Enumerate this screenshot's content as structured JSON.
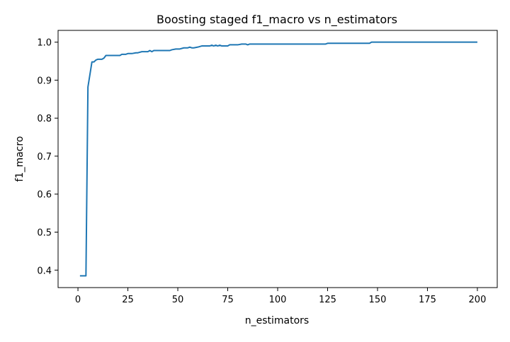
{
  "chart_data": {
    "type": "line",
    "title": "Boosting staged f1_macro vs n_estimators",
    "xlabel": "n_estimators",
    "ylabel": "f1_macro",
    "xlim": [
      -9.95,
      209.95
    ],
    "ylim": [
      0.354,
      1.031
    ],
    "xticks": [
      0,
      25,
      50,
      75,
      100,
      125,
      150,
      175,
      200
    ],
    "yticks": [
      0.4,
      0.5,
      0.6,
      0.7,
      0.8,
      0.9,
      1.0
    ],
    "ytick_labels": [
      "0.4",
      "0.5",
      "0.6",
      "0.7",
      "0.8",
      "0.9",
      "1.0"
    ],
    "grid": false,
    "line_color": "#1f77b4",
    "series": [
      {
        "x": [
          1,
          2,
          3,
          4,
          5,
          6,
          7,
          8,
          9,
          10,
          12,
          13,
          14,
          16,
          18,
          20,
          21,
          22,
          24,
          25,
          27,
          29,
          30,
          32,
          35,
          36,
          37,
          38,
          40,
          44,
          46,
          47,
          49,
          51,
          53,
          54,
          55,
          56,
          57,
          58,
          60,
          62,
          64,
          66,
          67,
          68,
          69,
          70,
          71,
          72,
          75,
          76,
          78,
          80,
          82,
          83,
          84,
          85,
          86,
          90,
          100,
          110,
          120,
          124,
          125,
          130,
          140,
          146,
          147,
          150,
          160,
          170,
          180,
          190,
          200
        ],
        "y": [
          0.385,
          0.385,
          0.385,
          0.385,
          0.882,
          0.915,
          0.948,
          0.948,
          0.953,
          0.955,
          0.955,
          0.958,
          0.965,
          0.965,
          0.965,
          0.965,
          0.965,
          0.968,
          0.968,
          0.97,
          0.97,
          0.972,
          0.972,
          0.975,
          0.975,
          0.978,
          0.975,
          0.978,
          0.978,
          0.978,
          0.978,
          0.98,
          0.982,
          0.982,
          0.985,
          0.985,
          0.985,
          0.987,
          0.985,
          0.985,
          0.987,
          0.99,
          0.99,
          0.99,
          0.992,
          0.99,
          0.992,
          0.99,
          0.992,
          0.99,
          0.99,
          0.993,
          0.993,
          0.993,
          0.995,
          0.995,
          0.995,
          0.993,
          0.995,
          0.995,
          0.995,
          0.995,
          0.995,
          0.995,
          0.997,
          0.997,
          0.997,
          0.997,
          1.0,
          1.0,
          1.0,
          1.0,
          1.0,
          1.0,
          1.0
        ]
      }
    ]
  }
}
